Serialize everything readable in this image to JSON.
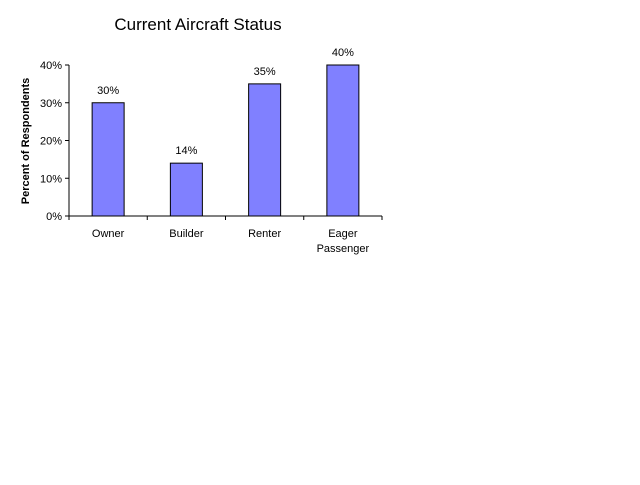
{
  "chart_data": {
    "type": "bar",
    "title": "Current Aircraft Status",
    "xlabel": "",
    "ylabel": "Percent of Respondents",
    "categories": [
      [
        "Owner"
      ],
      [
        "Builder"
      ],
      [
        "Renter"
      ],
      [
        "Eager",
        "Passenger"
      ]
    ],
    "values": [
      30,
      14,
      35,
      40
    ],
    "data_labels": [
      "30%",
      "14%",
      "35%",
      "40%"
    ],
    "ylim": [
      0,
      40
    ],
    "yticks": [
      0,
      10,
      20,
      30,
      40
    ],
    "ytick_labels": [
      "0%",
      "10%",
      "20%",
      "30%",
      "40%"
    ],
    "grid": false,
    "legend": "none",
    "bar_color": "#8080ff",
    "bar_stroke": "#000000"
  }
}
